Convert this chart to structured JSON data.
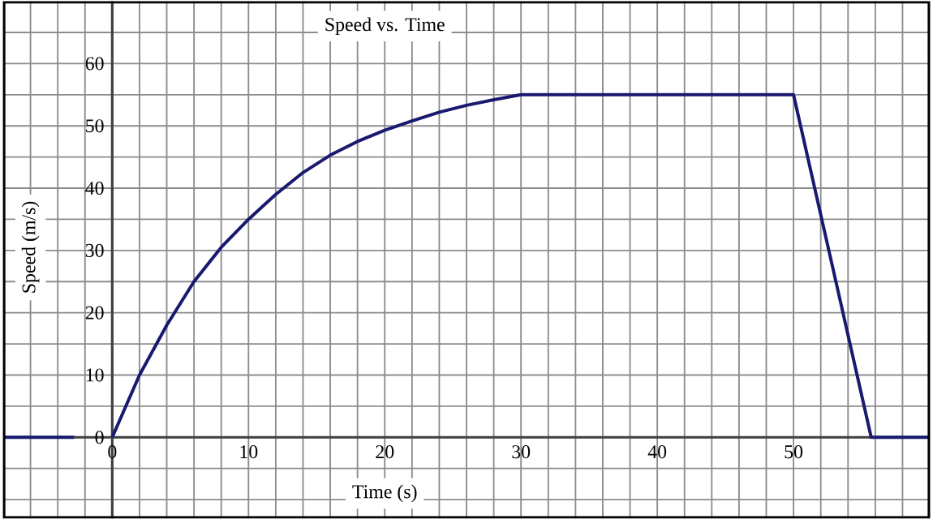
{
  "chart_data": {
    "type": "line",
    "title": "Speed vs. Time",
    "xlabel": "Time (s)",
    "ylabel": "Speed (m/s)",
    "x": [
      -8,
      -2.8,
      -1.5,
      0,
      2,
      4,
      6,
      8,
      10,
      12,
      14,
      16,
      18,
      20,
      22,
      24,
      26,
      28,
      30,
      50,
      55.7,
      60
    ],
    "series": [
      {
        "color": "#191970",
        "values": [
          0,
          0,
          null,
          0,
          10,
          18,
          25,
          30.5,
          35,
          39,
          42.5,
          45.3,
          47.5,
          49.3,
          50.8,
          52.2,
          53.3,
          54.2,
          55,
          55,
          0,
          0
        ]
      }
    ],
    "xlim": [
      -8,
      60
    ],
    "ylim": [
      -13,
      70
    ],
    "xticks": [
      {
        "value": -8,
        "label": null
      },
      {
        "value": -6,
        "label": null
      },
      {
        "value": -4,
        "label": null
      },
      {
        "value": -2,
        "label": null
      },
      0,
      {
        "value": 2,
        "label": null
      },
      {
        "value": 4,
        "label": null
      },
      {
        "value": 6,
        "label": null
      },
      {
        "value": 8,
        "label": null
      },
      10,
      {
        "value": 12,
        "label": null
      },
      {
        "value": 14,
        "label": null
      },
      {
        "value": 16,
        "label": null
      },
      {
        "value": 18,
        "label": null
      },
      20,
      {
        "value": 22,
        "label": null
      },
      {
        "value": 24,
        "label": null
      },
      {
        "value": 26,
        "label": null
      },
      {
        "value": 28,
        "label": null
      },
      30,
      {
        "value": 32,
        "label": null
      },
      {
        "value": 34,
        "label": null
      },
      {
        "value": 36,
        "label": null
      },
      {
        "value": 38,
        "label": null
      },
      40,
      {
        "value": 42,
        "label": null
      },
      {
        "value": 44,
        "label": null
      },
      {
        "value": 46,
        "label": null
      },
      {
        "value": 48,
        "label": null
      },
      50,
      {
        "value": 52,
        "label": null
      },
      {
        "value": 54,
        "label": null
      },
      {
        "value": 56,
        "label": null
      },
      {
        "value": 58,
        "label": null
      },
      {
        "value": 60,
        "label": null
      }
    ],
    "yticks": [
      {
        "value": -10,
        "label": null
      },
      {
        "value": -5,
        "label": null
      },
      0,
      {
        "value": 5,
        "label": null
      },
      10,
      {
        "value": 15,
        "label": null
      },
      20,
      {
        "value": 25,
        "label": null
      },
      30,
      {
        "value": 35,
        "label": null
      },
      40,
      {
        "value": 45,
        "label": null
      },
      50,
      {
        "value": 55,
        "label": null
      },
      60,
      {
        "value": 65,
        "label": null
      }
    ],
    "grid": true,
    "marker": "none",
    "line_style": "solid"
  }
}
